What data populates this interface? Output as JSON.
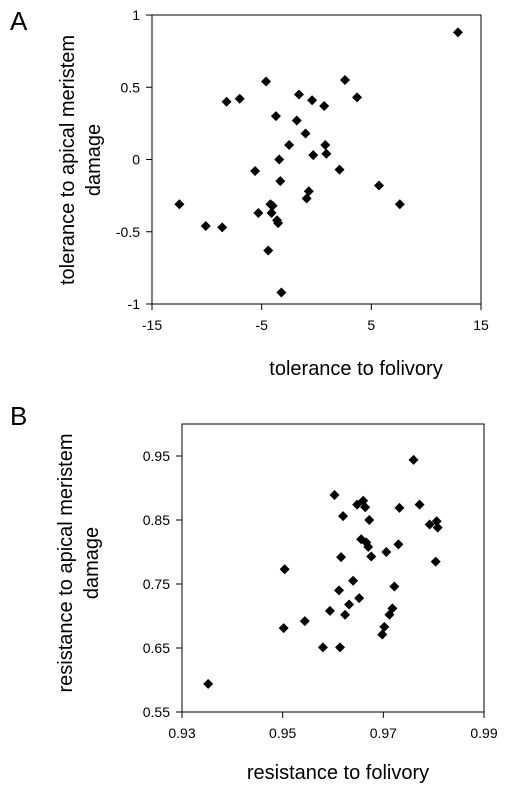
{
  "chart_data": [
    {
      "type": "scatter",
      "panel": "A",
      "xlabel": "tolerance to folivory",
      "ylabel": "tolerance to apical meristem damage",
      "xlim": [
        -15,
        15
      ],
      "ylim": [
        -1,
        1
      ],
      "xticks": [
        -15,
        -5,
        5,
        15
      ],
      "xtick_labels": [
        "-15",
        "-5",
        "5",
        "15"
      ],
      "yticks": [
        -1,
        -0.5,
        0,
        0.5,
        1
      ],
      "ytick_labels": [
        "-1",
        "-0.5",
        "0",
        "0.5",
        "1"
      ],
      "grid": false,
      "marker": "diamond",
      "x": [
        -12.5,
        -10.1,
        -8.6,
        -8.2,
        -7.0,
        -5.6,
        -5.3,
        -4.6,
        -4.4,
        -4.2,
        -4.1,
        -4.0,
        -3.7,
        -3.6,
        -3.5,
        -3.4,
        -3.3,
        -3.2,
        -2.5,
        -1.8,
        -1.6,
        -1.0,
        -0.9,
        -0.7,
        -0.4,
        -0.3,
        0.7,
        0.8,
        0.9,
        2.1,
        2.6,
        3.7,
        5.7,
        7.6,
        12.9
      ],
      "y": [
        -0.31,
        -0.46,
        -0.47,
        0.4,
        0.42,
        -0.08,
        -0.37,
        0.54,
        -0.63,
        -0.31,
        -0.37,
        -0.32,
        0.3,
        -0.42,
        -0.44,
        0.0,
        -0.15,
        -0.92,
        0.1,
        0.27,
        0.45,
        0.18,
        -0.27,
        -0.22,
        0.41,
        0.03,
        0.37,
        0.1,
        0.04,
        -0.07,
        0.55,
        0.43,
        -0.18,
        -0.31,
        0.88
      ]
    },
    {
      "type": "scatter",
      "panel": "B",
      "xlabel": "resistance to folivory",
      "ylabel": "resistance to apical meristem damage",
      "xlim": [
        0.93,
        0.99
      ],
      "ylim": [
        0.55,
        1.0
      ],
      "xticks": [
        0.93,
        0.95,
        0.97,
        0.99
      ],
      "xtick_labels": [
        "0.93",
        "0.95",
        "0.97",
        "0.99"
      ],
      "yticks": [
        0.55,
        0.65,
        0.75,
        0.85,
        0.95
      ],
      "ytick_labels": [
        "0.55",
        "0.65",
        "0.75",
        "0.85",
        "0.95"
      ],
      "grid": false,
      "marker": "diamond",
      "x": [
        0.9352,
        0.9502,
        0.9504,
        0.9544,
        0.958,
        0.9594,
        0.9603,
        0.9612,
        0.9614,
        0.9616,
        0.962,
        0.9624,
        0.9632,
        0.964,
        0.9648,
        0.9652,
        0.9656,
        0.966,
        0.9664,
        0.9666,
        0.967,
        0.9672,
        0.9676,
        0.9698,
        0.9702,
        0.9706,
        0.9712,
        0.9718,
        0.9722,
        0.973,
        0.9732,
        0.976,
        0.9772,
        0.9792,
        0.9804,
        0.9806,
        0.9808
      ],
      "y": [
        0.594,
        0.681,
        0.773,
        0.692,
        0.651,
        0.708,
        0.889,
        0.74,
        0.651,
        0.792,
        0.856,
        0.702,
        0.718,
        0.755,
        0.874,
        0.728,
        0.82,
        0.88,
        0.87,
        0.815,
        0.808,
        0.85,
        0.793,
        0.671,
        0.683,
        0.8,
        0.702,
        0.712,
        0.746,
        0.812,
        0.869,
        0.944,
        0.874,
        0.843,
        0.785,
        0.848,
        0.838
      ]
    }
  ],
  "panels": [
    {
      "letter": "A"
    },
    {
      "letter": "B"
    }
  ],
  "colors": {
    "marker": "#000000",
    "axis": "#000000",
    "background": "#ffffff"
  }
}
